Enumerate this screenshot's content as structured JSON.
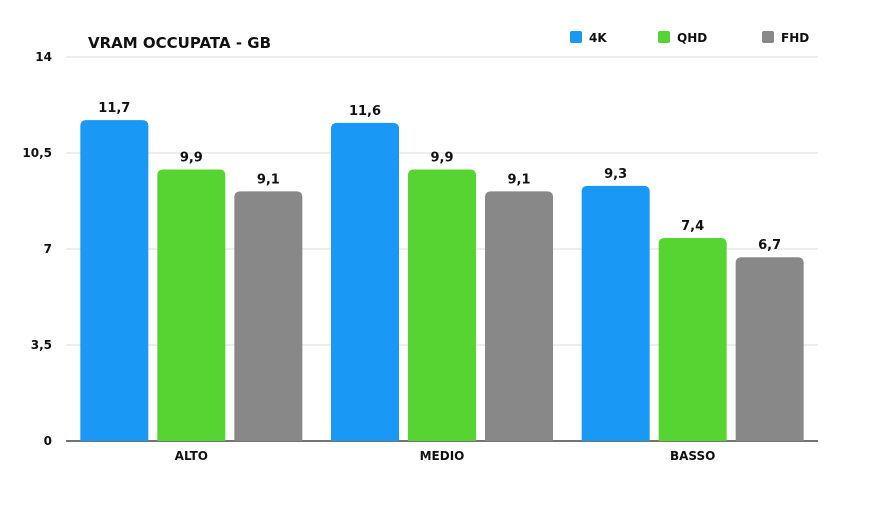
{
  "chart_data": {
    "type": "bar",
    "title": "VRAM OCCUPATA - GB",
    "categories": [
      "ALTO",
      "MEDIO",
      "BASSO"
    ],
    "series": [
      {
        "name": "4K",
        "color": "#1a98f5",
        "values": [
          11.7,
          11.6,
          9.3
        ],
        "labels": [
          "11,7",
          "11,6",
          "9,3"
        ]
      },
      {
        "name": "QHD",
        "color": "#55d432",
        "values": [
          9.9,
          9.9,
          7.4
        ],
        "labels": [
          "9,9",
          "9,9",
          "7,4"
        ]
      },
      {
        "name": "FHD",
        "color": "#888888",
        "values": [
          9.1,
          9.1,
          6.7
        ],
        "labels": [
          "9,1",
          "9,1",
          "6,7"
        ]
      }
    ],
    "ylim": [
      0,
      14
    ],
    "yticks": [
      0,
      3.5,
      7,
      10.5,
      14
    ],
    "ytick_labels": [
      "0",
      "3,5",
      "7",
      "10,5",
      "14"
    ],
    "grid": true,
    "legend": "top-right",
    "xlabel": "",
    "ylabel": ""
  }
}
